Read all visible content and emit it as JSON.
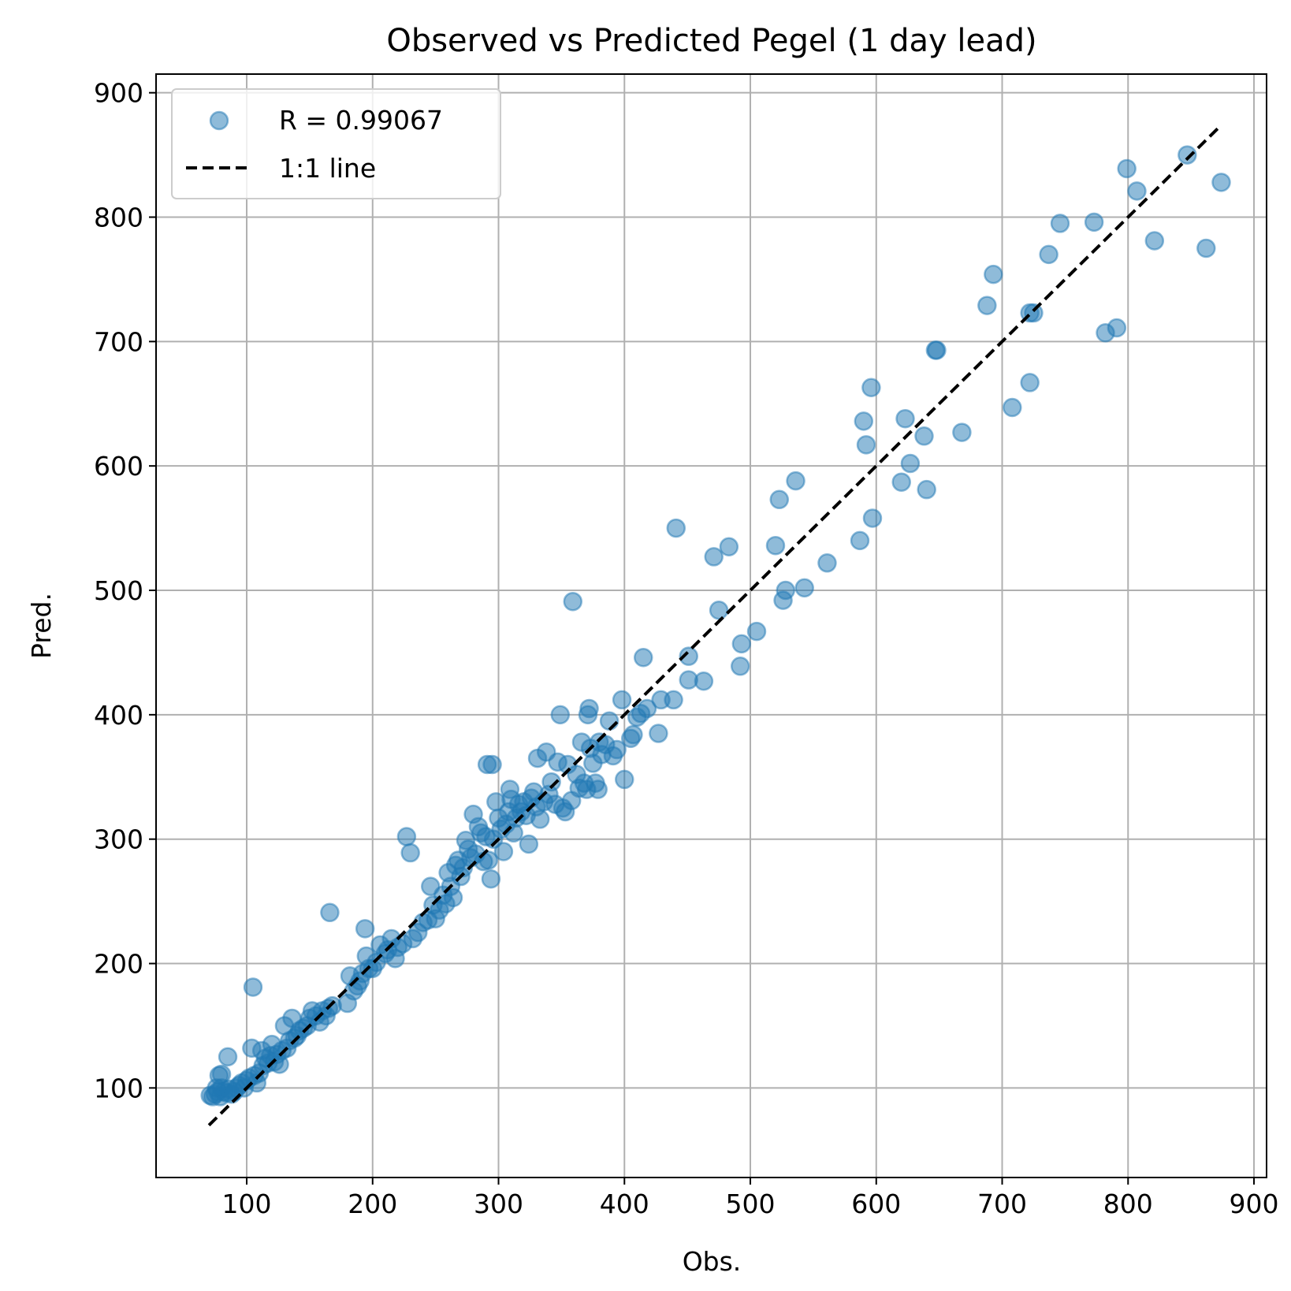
{
  "chart_data": {
    "type": "scatter",
    "title": "Observed vs Predicted Pegel (1 day lead)",
    "xlabel": "Obs.",
    "ylabel": "Pred.",
    "xlim": [
      28,
      910
    ],
    "ylim": [
      28,
      915
    ],
    "xticks": [
      100,
      200,
      300,
      400,
      500,
      600,
      700,
      800,
      900
    ],
    "yticks": [
      100,
      200,
      300,
      400,
      500,
      600,
      700,
      800,
      900
    ],
    "grid": true,
    "legend_position": "top-left",
    "colors": {
      "points": "#1f77b4",
      "line": "#000000",
      "grid": "#b0b0b0"
    },
    "series": [
      {
        "name": "R = 0.99067",
        "kind": "scatter",
        "points": [
          [
            71,
            94
          ],
          [
            73,
            93
          ],
          [
            75,
            95
          ],
          [
            76,
            100
          ],
          [
            77,
            97
          ],
          [
            78,
            110
          ],
          [
            79,
            93
          ],
          [
            80,
            111
          ],
          [
            80,
            100
          ],
          [
            82,
            97
          ],
          [
            84,
            96
          ],
          [
            85,
            125
          ],
          [
            86,
            99
          ],
          [
            88,
            95
          ],
          [
            90,
            97
          ],
          [
            92,
            100
          ],
          [
            94,
            102
          ],
          [
            96,
            104
          ],
          [
            98,
            100
          ],
          [
            100,
            106
          ],
          [
            102,
            108
          ],
          [
            104,
            132
          ],
          [
            105,
            181
          ],
          [
            106,
            110
          ],
          [
            108,
            104
          ],
          [
            110,
            112
          ],
          [
            112,
            130
          ],
          [
            113,
            118
          ],
          [
            115,
            124
          ],
          [
            117,
            120
          ],
          [
            119,
            126
          ],
          [
            120,
            135
          ],
          [
            122,
            121
          ],
          [
            124,
            127
          ],
          [
            126,
            119
          ],
          [
            128,
            130
          ],
          [
            130,
            150
          ],
          [
            132,
            132
          ],
          [
            134,
            138
          ],
          [
            136,
            156
          ],
          [
            138,
            140
          ],
          [
            140,
            142
          ],
          [
            142,
            146
          ],
          [
            145,
            148
          ],
          [
            148,
            150
          ],
          [
            150,
            156
          ],
          [
            152,
            162
          ],
          [
            155,
            158
          ],
          [
            158,
            153
          ],
          [
            160,
            162
          ],
          [
            163,
            158
          ],
          [
            165,
            164
          ],
          [
            166,
            241
          ],
          [
            168,
            166
          ],
          [
            180,
            168
          ],
          [
            182,
            190
          ],
          [
            185,
            178
          ],
          [
            188,
            182
          ],
          [
            190,
            186
          ],
          [
            192,
            192
          ],
          [
            194,
            228
          ],
          [
            195,
            206
          ],
          [
            197,
            196
          ],
          [
            200,
            196
          ],
          [
            203,
            201
          ],
          [
            206,
            215
          ],
          [
            210,
            208
          ],
          [
            212,
            211
          ],
          [
            215,
            220
          ],
          [
            218,
            204
          ],
          [
            220,
            213
          ],
          [
            224,
            216
          ],
          [
            227,
            302
          ],
          [
            230,
            289
          ],
          [
            232,
            220
          ],
          [
            236,
            225
          ],
          [
            240,
            233
          ],
          [
            244,
            235
          ],
          [
            246,
            262
          ],
          [
            248,
            247
          ],
          [
            250,
            236
          ],
          [
            253,
            243
          ],
          [
            256,
            255
          ],
          [
            258,
            248
          ],
          [
            260,
            273
          ],
          [
            262,
            262
          ],
          [
            264,
            253
          ],
          [
            266,
            279
          ],
          [
            268,
            283
          ],
          [
            270,
            270
          ],
          [
            272,
            277
          ],
          [
            274,
            299
          ],
          [
            276,
            292
          ],
          [
            278,
            285
          ],
          [
            280,
            320
          ],
          [
            282,
            288
          ],
          [
            284,
            310
          ],
          [
            286,
            305
          ],
          [
            288,
            282
          ],
          [
            290,
            302
          ],
          [
            291,
            360
          ],
          [
            292,
            283
          ],
          [
            294,
            268
          ],
          [
            295,
            360
          ],
          [
            296,
            300
          ],
          [
            298,
            330
          ],
          [
            300,
            317
          ],
          [
            302,
            308
          ],
          [
            304,
            290
          ],
          [
            306,
            312
          ],
          [
            308,
            322
          ],
          [
            309,
            340
          ],
          [
            310,
            332
          ],
          [
            312,
            305
          ],
          [
            314,
            317
          ],
          [
            316,
            328
          ],
          [
            318,
            322
          ],
          [
            320,
            330
          ],
          [
            322,
            319
          ],
          [
            324,
            296
          ],
          [
            326,
            333
          ],
          [
            328,
            338
          ],
          [
            330,
            326
          ],
          [
            331,
            365
          ],
          [
            333,
            316
          ],
          [
            336,
            330
          ],
          [
            338,
            370
          ],
          [
            340,
            336
          ],
          [
            342,
            346
          ],
          [
            345,
            328
          ],
          [
            347,
            362
          ],
          [
            349,
            400
          ],
          [
            351,
            325
          ],
          [
            353,
            322
          ],
          [
            355,
            360
          ],
          [
            358,
            331
          ],
          [
            359,
            491
          ],
          [
            362,
            352
          ],
          [
            364,
            341
          ],
          [
            366,
            378
          ],
          [
            368,
            345
          ],
          [
            370,
            340
          ],
          [
            371,
            400
          ],
          [
            372,
            405
          ],
          [
            373,
            373
          ],
          [
            375,
            361
          ],
          [
            377,
            345
          ],
          [
            379,
            340
          ],
          [
            380,
            378
          ],
          [
            382,
            368
          ],
          [
            385,
            376
          ],
          [
            388,
            395
          ],
          [
            391,
            367
          ],
          [
            394,
            372
          ],
          [
            398,
            412
          ],
          [
            400,
            348
          ],
          [
            405,
            381
          ],
          [
            407,
            384
          ],
          [
            410,
            398
          ],
          [
            413,
            401
          ],
          [
            415,
            446
          ],
          [
            418,
            405
          ],
          [
            427,
            385
          ],
          [
            429,
            412
          ],
          [
            439,
            412
          ],
          [
            441,
            550
          ],
          [
            451,
            447
          ],
          [
            451,
            428
          ],
          [
            463,
            427
          ],
          [
            471,
            527
          ],
          [
            475,
            484
          ],
          [
            483,
            535
          ],
          [
            492,
            439
          ],
          [
            493,
            457
          ],
          [
            505,
            467
          ],
          [
            520,
            536
          ],
          [
            523,
            573
          ],
          [
            526,
            492
          ],
          [
            528,
            500
          ],
          [
            536,
            588
          ],
          [
            543,
            502
          ],
          [
            561,
            522
          ],
          [
            587,
            540
          ],
          [
            590,
            636
          ],
          [
            592,
            617
          ],
          [
            596,
            663
          ],
          [
            597,
            558
          ],
          [
            620,
            587
          ],
          [
            623,
            638
          ],
          [
            627,
            602
          ],
          [
            638,
            624
          ],
          [
            640,
            581
          ],
          [
            647,
            693
          ],
          [
            648,
            693
          ],
          [
            668,
            627
          ],
          [
            688,
            729
          ],
          [
            693,
            754
          ],
          [
            708,
            647
          ],
          [
            722,
            667
          ],
          [
            722,
            723
          ],
          [
            725,
            723
          ],
          [
            737,
            770
          ],
          [
            746,
            795
          ],
          [
            773,
            796
          ],
          [
            782,
            707
          ],
          [
            791,
            711
          ],
          [
            799,
            839
          ],
          [
            807,
            821
          ],
          [
            821,
            781
          ],
          [
            847,
            850
          ],
          [
            862,
            775
          ],
          [
            874,
            828
          ]
        ]
      },
      {
        "name": "1:1 line",
        "kind": "line",
        "points": [
          [
            70,
            70
          ],
          [
            872,
            872
          ]
        ]
      }
    ]
  }
}
